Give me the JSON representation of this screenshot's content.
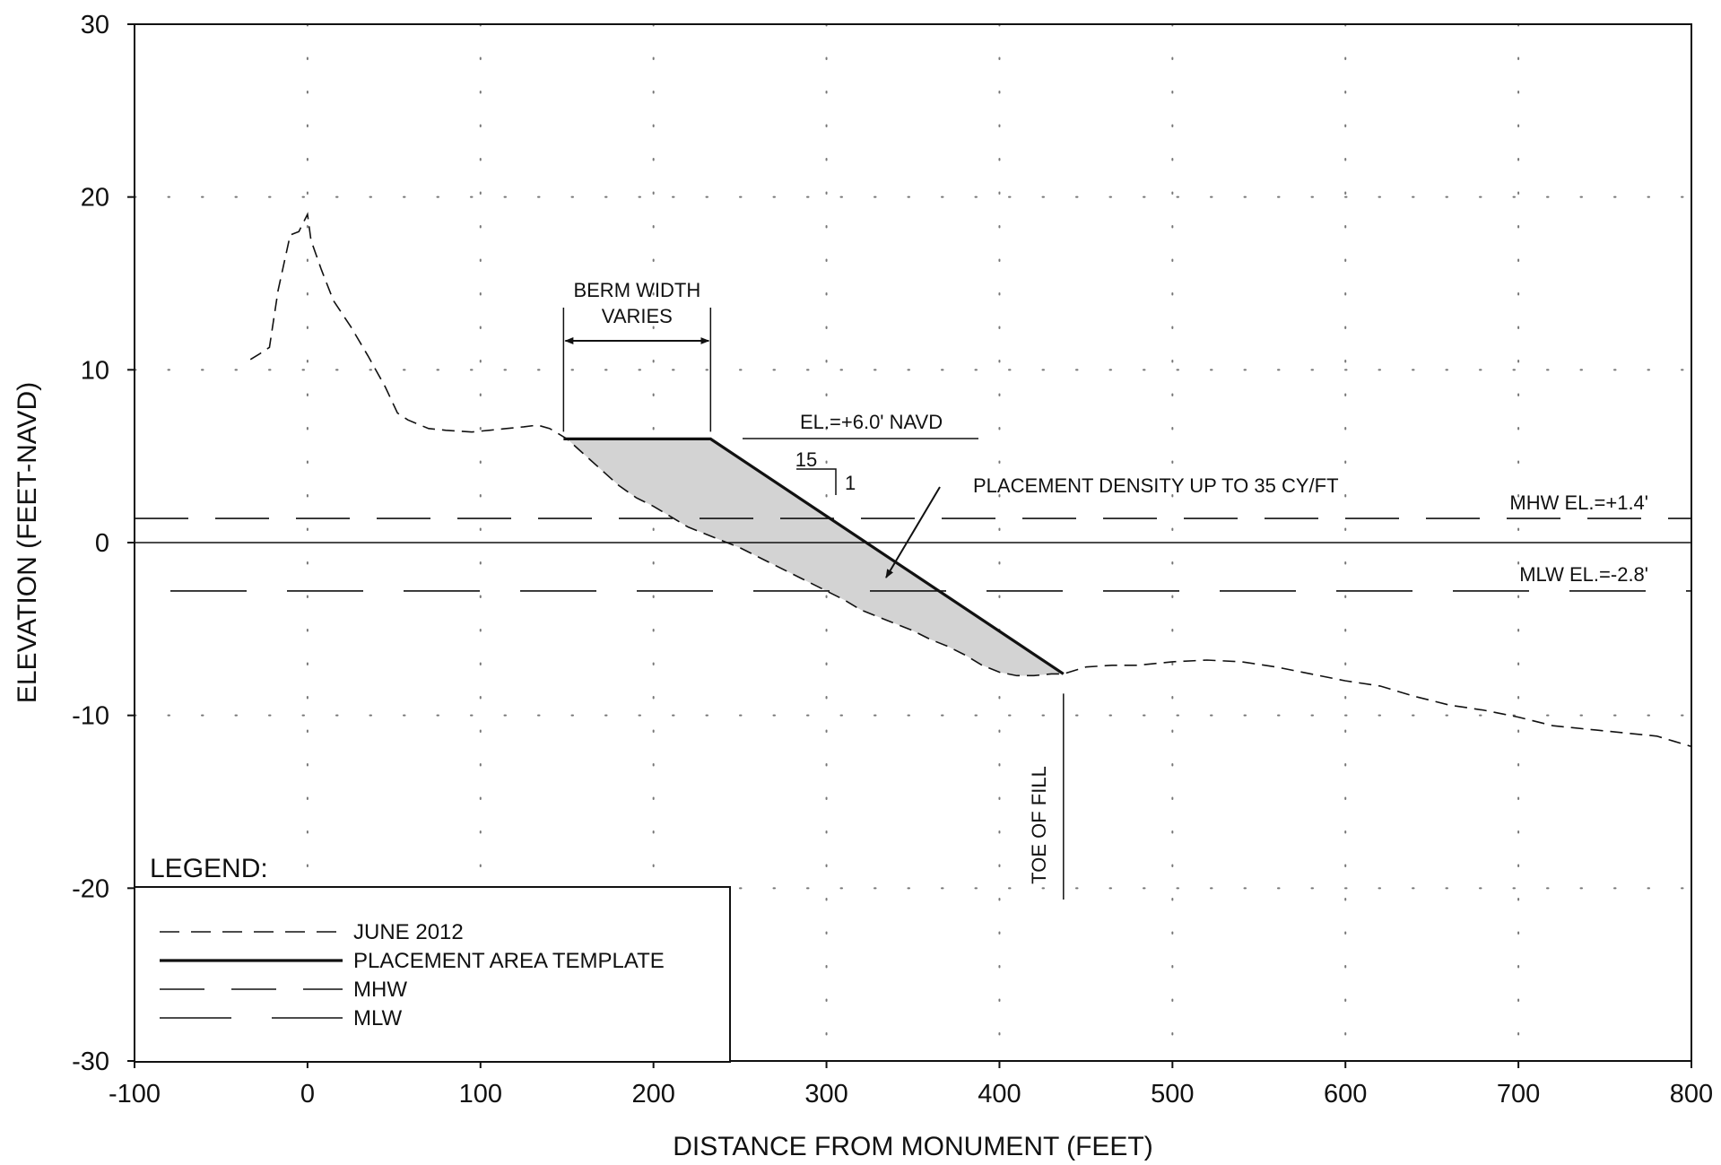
{
  "chart_data": {
    "type": "line",
    "xlabel": "DISTANCE FROM MONUMENT (FEET)",
    "ylabel": "ELEVATION (FEET-NAVD)",
    "xlim": [
      -100,
      800
    ],
    "ylim": [
      -30,
      30
    ],
    "x_ticks": [
      "-100",
      "0",
      "100",
      "200",
      "300",
      "400",
      "500",
      "600",
      "700",
      "800"
    ],
    "y_ticks": [
      "30",
      "20",
      "10",
      "0",
      "-10",
      "-20",
      "-30"
    ],
    "grid": "dotted",
    "series": [
      {
        "name": "JUNE 2012",
        "style": "dashed",
        "x": [
          -33,
          -28,
          -22,
          -17,
          -10,
          -5,
          0,
          2,
          8,
          15,
          25,
          35,
          45,
          52,
          58,
          70,
          80,
          95,
          105,
          115,
          125,
          133,
          140,
          145,
          150,
          160,
          170,
          180,
          190,
          200,
          210,
          220,
          230,
          240,
          250,
          260,
          270,
          280,
          290,
          300,
          310,
          320,
          330,
          340,
          350,
          360,
          370,
          380,
          390,
          400,
          410,
          420,
          430,
          437,
          450,
          465,
          480,
          500,
          520,
          540,
          560,
          580,
          600,
          620,
          640,
          660,
          680,
          700,
          720,
          740,
          760,
          780,
          790,
          800
        ],
        "y": [
          10.6,
          10.9,
          11.3,
          14.6,
          17.8,
          18,
          19,
          17.5,
          15.8,
          14,
          12.5,
          10.8,
          9,
          7.5,
          7.1,
          6.6,
          6.5,
          6.4,
          6.5,
          6.6,
          6.7,
          6.8,
          6.6,
          6.3,
          6.0,
          5.1,
          4.2,
          3.3,
          2.6,
          2.1,
          1.5,
          0.9,
          0.5,
          0.1,
          -0.3,
          -0.8,
          -1.3,
          -1.8,
          -2.3,
          -2.8,
          -3.3,
          -3.9,
          -4.3,
          -4.7,
          -5.1,
          -5.6,
          -6.0,
          -6.5,
          -7.1,
          -7.5,
          -7.7,
          -7.7,
          -7.6,
          -7.6,
          -7.2,
          -7.1,
          -7.1,
          -6.9,
          -6.8,
          -6.9,
          -7.2,
          -7.6,
          -8.0,
          -8.3,
          -8.9,
          -9.4,
          -9.7,
          -10.1,
          -10.6,
          -10.8,
          -11.0,
          -11.2,
          -11.5,
          -11.8
        ]
      },
      {
        "name": "PLACEMENT AREA TEMPLATE",
        "style": "solid-thick",
        "x": [
          148,
          233,
          437
        ],
        "y": [
          6.0,
          6.0,
          -7.6
        ]
      },
      {
        "name": "MHW",
        "style": "long-dash",
        "x": [
          -100,
          800
        ],
        "y": [
          1.4,
          1.4
        ]
      },
      {
        "name": "MLW",
        "style": "long-dash-gap",
        "x": [
          -100,
          800
        ],
        "y": [
          -2.8,
          -2.8
        ]
      }
    ],
    "reference_line": {
      "x": [
        -100,
        800
      ],
      "y": [
        0,
        0
      ],
      "style": "solid-thin"
    },
    "annotations": {
      "berm_width_line1": "BERM WIDTH",
      "berm_width_line2": "VARIES",
      "elevation_label": "EL.=+6.0' NAVD",
      "slope_run": "15",
      "slope_rise": "1",
      "placement_density": "PLACEMENT DENSITY UP TO 35 CY/FT",
      "mhw_label": "MHW EL.=+1.4'",
      "mlw_label": "MLW EL.=-2.8'",
      "toe_of_fill": "TOE OF FILL"
    },
    "legend": {
      "title": "LEGEND:",
      "position": "bottom-left",
      "items": [
        "JUNE 2012",
        "PLACEMENT AREA TEMPLATE",
        "MHW",
        "MLW"
      ]
    },
    "fill_color": "#d3d3d3"
  }
}
